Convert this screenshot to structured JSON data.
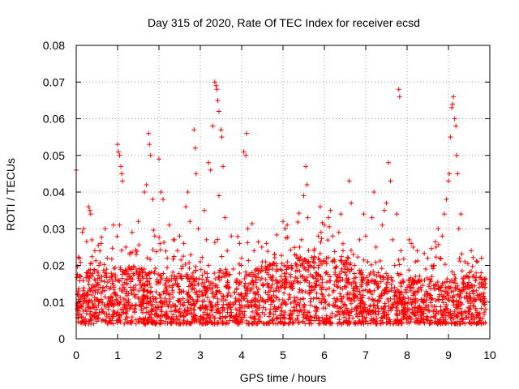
{
  "chart_data": {
    "type": "scatter",
    "title": "Day 315 of 2020, Rate Of TEC Index for receiver ecsd",
    "xlabel": "GPS time / hours",
    "ylabel": "ROTI / TECUs",
    "xlim": [
      0,
      10
    ],
    "ylim": [
      0,
      0.08
    ],
    "x_ticks": [
      "0",
      "1",
      "2",
      "3",
      "4",
      "5",
      "6",
      "7",
      "8",
      "9",
      "10"
    ],
    "y_ticks": [
      "0",
      "0.01",
      "0.02",
      "0.03",
      "0.04",
      "0.05",
      "0.06",
      "0.07",
      "0.08"
    ],
    "grid": true,
    "marker": "+",
    "color": "#ff0000",
    "series": [
      {
        "name": "ROTI",
        "points": [
          [
            0.0,
            0.046
          ],
          [
            0.05,
            0.012
          ],
          [
            0.08,
            0.022
          ],
          [
            0.1,
            0.009
          ],
          [
            0.15,
            0.029
          ],
          [
            0.18,
            0.03
          ],
          [
            0.2,
            0.011
          ],
          [
            0.25,
            0.018
          ],
          [
            0.3,
            0.036
          ],
          [
            0.33,
            0.035
          ],
          [
            0.35,
            0.034
          ],
          [
            0.4,
            0.013
          ],
          [
            0.45,
            0.024
          ],
          [
            0.5,
            0.008
          ],
          [
            0.55,
            0.02
          ],
          [
            0.6,
            0.026
          ],
          [
            0.65,
            0.014
          ],
          [
            0.7,
            0.03
          ],
          [
            0.75,
            0.022
          ],
          [
            0.8,
            0.009
          ],
          [
            0.85,
            0.017
          ],
          [
            0.9,
            0.031
          ],
          [
            0.95,
            0.012
          ],
          [
            1.0,
            0.053
          ],
          [
            1.02,
            0.051
          ],
          [
            1.05,
            0.05
          ],
          [
            1.08,
            0.047
          ],
          [
            1.1,
            0.045
          ],
          [
            1.12,
            0.043
          ],
          [
            1.05,
            0.031
          ],
          [
            1.15,
            0.014
          ],
          [
            1.2,
            0.025
          ],
          [
            1.25,
            0.01
          ],
          [
            1.3,
            0.019
          ],
          [
            1.35,
            0.029
          ],
          [
            1.4,
            0.012
          ],
          [
            1.45,
            0.023
          ],
          [
            1.5,
            0.032
          ],
          [
            1.55,
            0.009
          ],
          [
            1.6,
            0.018
          ],
          [
            1.65,
            0.04
          ],
          [
            1.7,
            0.042
          ],
          [
            1.75,
            0.056
          ],
          [
            1.77,
            0.053
          ],
          [
            1.8,
            0.05
          ],
          [
            1.85,
            0.038
          ],
          [
            1.9,
            0.028
          ],
          [
            1.95,
            0.015
          ],
          [
            2.0,
            0.049
          ],
          [
            2.05,
            0.04
          ],
          [
            2.1,
            0.038
          ],
          [
            2.15,
            0.011
          ],
          [
            2.2,
            0.022
          ],
          [
            2.25,
            0.031
          ],
          [
            2.3,
            0.016
          ],
          [
            2.35,
            0.027
          ],
          [
            2.4,
            0.009
          ],
          [
            2.45,
            0.024
          ],
          [
            2.5,
            0.028
          ],
          [
            2.55,
            0.013
          ],
          [
            2.6,
            0.026
          ],
          [
            2.65,
            0.036
          ],
          [
            2.7,
            0.04
          ],
          [
            2.75,
            0.032
          ],
          [
            2.8,
            0.017
          ],
          [
            2.85,
            0.057
          ],
          [
            2.88,
            0.052
          ],
          [
            2.9,
            0.045
          ],
          [
            2.95,
            0.03
          ],
          [
            3.0,
            0.021
          ],
          [
            3.05,
            0.012
          ],
          [
            3.1,
            0.035
          ],
          [
            3.15,
            0.027
          ],
          [
            3.2,
            0.048
          ],
          [
            3.25,
            0.046
          ],
          [
            3.3,
            0.058
          ],
          [
            3.35,
            0.07
          ],
          [
            3.38,
            0.069
          ],
          [
            3.4,
            0.068
          ],
          [
            3.42,
            0.065
          ],
          [
            3.45,
            0.062
          ],
          [
            3.5,
            0.057
          ],
          [
            3.52,
            0.055
          ],
          [
            3.55,
            0.047
          ],
          [
            3.45,
            0.039
          ],
          [
            3.6,
            0.033
          ],
          [
            3.65,
            0.024
          ],
          [
            3.7,
            0.014
          ],
          [
            3.75,
            0.028
          ],
          [
            3.8,
            0.019
          ],
          [
            3.85,
            0.011
          ],
          [
            3.9,
            0.016
          ],
          [
            3.95,
            0.026
          ],
          [
            4.0,
            0.022
          ],
          [
            4.05,
            0.051
          ],
          [
            4.1,
            0.05
          ],
          [
            4.12,
            0.056
          ],
          [
            4.15,
            0.03
          ],
          [
            4.2,
            0.013
          ],
          [
            4.25,
            0.018
          ],
          [
            4.3,
            0.024
          ],
          [
            4.35,
            0.009
          ],
          [
            4.4,
            0.012
          ],
          [
            4.45,
            0.016
          ],
          [
            4.5,
            0.021
          ],
          [
            4.55,
            0.01
          ],
          [
            4.6,
            0.026
          ],
          [
            4.65,
            0.014
          ],
          [
            4.7,
            0.011
          ],
          [
            4.75,
            0.019
          ],
          [
            4.8,
            0.023
          ],
          [
            4.85,
            0.008
          ],
          [
            4.9,
            0.013
          ],
          [
            4.95,
            0.017
          ],
          [
            5.0,
            0.032
          ],
          [
            5.05,
            0.03
          ],
          [
            5.1,
            0.031
          ],
          [
            5.15,
            0.012
          ],
          [
            5.2,
            0.02
          ],
          [
            5.25,
            0.015
          ],
          [
            5.3,
            0.01
          ],
          [
            5.35,
            0.022
          ],
          [
            5.4,
            0.025
          ],
          [
            5.45,
            0.027
          ],
          [
            5.5,
            0.039
          ],
          [
            5.55,
            0.047
          ],
          [
            5.58,
            0.042
          ],
          [
            5.6,
            0.033
          ],
          [
            5.65,
            0.02
          ],
          [
            5.7,
            0.014
          ],
          [
            5.75,
            0.024
          ],
          [
            5.8,
            0.018
          ],
          [
            5.85,
            0.028
          ],
          [
            5.9,
            0.036
          ],
          [
            5.95,
            0.012
          ],
          [
            6.0,
            0.031
          ],
          [
            6.05,
            0.022
          ],
          [
            6.1,
            0.033
          ],
          [
            6.15,
            0.035
          ],
          [
            6.2,
            0.028
          ],
          [
            6.25,
            0.021
          ],
          [
            6.3,
            0.016
          ],
          [
            6.35,
            0.029
          ],
          [
            6.4,
            0.034
          ],
          [
            6.45,
            0.024
          ],
          [
            6.5,
            0.018
          ],
          [
            6.55,
            0.012
          ],
          [
            6.6,
            0.043
          ],
          [
            6.65,
            0.037
          ],
          [
            6.7,
            0.023
          ],
          [
            6.75,
            0.015
          ],
          [
            6.8,
            0.009
          ],
          [
            6.85,
            0.027
          ],
          [
            6.9,
            0.018
          ],
          [
            6.95,
            0.034
          ],
          [
            7.0,
            0.028
          ],
          [
            7.05,
            0.021
          ],
          [
            7.1,
            0.013
          ],
          [
            7.15,
            0.033
          ],
          [
            7.2,
            0.04
          ],
          [
            7.25,
            0.025
          ],
          [
            7.3,
            0.018
          ],
          [
            7.35,
            0.011
          ],
          [
            7.4,
            0.031
          ],
          [
            7.45,
            0.035
          ],
          [
            7.5,
            0.037
          ],
          [
            7.55,
            0.048
          ],
          [
            7.6,
            0.043
          ],
          [
            7.65,
            0.027
          ],
          [
            7.7,
            0.02
          ],
          [
            7.75,
            0.034
          ],
          [
            7.8,
            0.068
          ],
          [
            7.82,
            0.066
          ],
          [
            7.85,
            0.024
          ],
          [
            7.9,
            0.016
          ],
          [
            7.95,
            0.011
          ],
          [
            8.0,
            0.014
          ],
          [
            8.05,
            0.027
          ],
          [
            8.1,
            0.026
          ],
          [
            8.15,
            0.025
          ],
          [
            8.2,
            0.021
          ],
          [
            8.25,
            0.013
          ],
          [
            8.3,
            0.009
          ],
          [
            8.35,
            0.016
          ],
          [
            8.4,
            0.007
          ],
          [
            8.45,
            0.019
          ],
          [
            8.5,
            0.022
          ],
          [
            8.55,
            0.012
          ],
          [
            8.6,
            0.017
          ],
          [
            8.65,
            0.02
          ],
          [
            8.7,
            0.025
          ],
          [
            8.75,
            0.03
          ],
          [
            8.8,
            0.022
          ],
          [
            8.85,
            0.028
          ],
          [
            8.9,
            0.034
          ],
          [
            8.95,
            0.038
          ],
          [
            9.0,
            0.043
          ],
          [
            9.02,
            0.045
          ],
          [
            9.05,
            0.055
          ],
          [
            9.08,
            0.063
          ],
          [
            9.1,
            0.064
          ],
          [
            9.12,
            0.066
          ],
          [
            9.15,
            0.06
          ],
          [
            9.18,
            0.058
          ],
          [
            9.2,
            0.05
          ],
          [
            9.22,
            0.045
          ],
          [
            9.25,
            0.03
          ],
          [
            9.3,
            0.034
          ],
          [
            9.35,
            0.014
          ],
          [
            9.4,
            0.021
          ],
          [
            9.45,
            0.011
          ],
          [
            9.5,
            0.018
          ],
          [
            9.55,
            0.024
          ],
          [
            9.6,
            0.009
          ],
          [
            9.65,
            0.016
          ],
          [
            9.7,
            0.021
          ],
          [
            9.75,
            0.012
          ],
          [
            9.8,
            0.022
          ],
          [
            9.85,
            0.015
          ],
          [
            9.9,
            0.008
          ]
        ],
        "dense_band": {
          "description": "dense cluster of measurements between x 0 and 9.9",
          "x_range": [
            0,
            9.9
          ],
          "y_range_low": [
            0.004,
            0.018
          ],
          "count": 2600
        }
      }
    ]
  }
}
